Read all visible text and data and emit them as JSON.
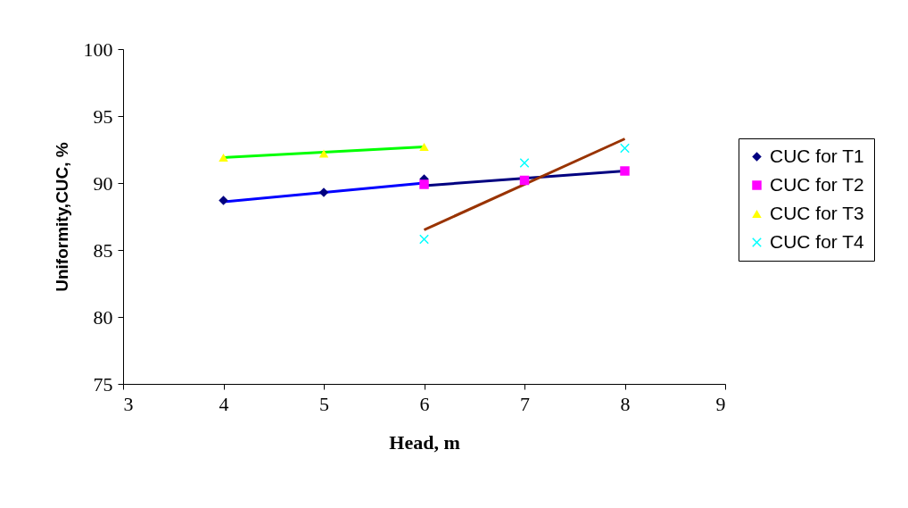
{
  "chart_data": {
    "type": "scatter",
    "xlabel": "Head, m",
    "ylabel": "Uniformity,CUC, %",
    "xlim": [
      3,
      9
    ],
    "xticks": [
      3,
      4,
      5,
      6,
      7,
      8,
      9
    ],
    "ylim": [
      75,
      100
    ],
    "yticks": [
      75,
      80,
      85,
      90,
      95,
      100
    ],
    "grid": false,
    "legend": "right",
    "series": [
      {
        "name": "CUC for T1",
        "marker": "diamond",
        "color": "#000080",
        "x": [
          4,
          5,
          6
        ],
        "values": [
          88.7,
          89.3,
          90.3
        ]
      },
      {
        "name": "CUC for T2",
        "marker": "square",
        "color": "#ff00ff",
        "x": [
          6,
          7,
          8
        ],
        "values": [
          89.9,
          90.2,
          90.9
        ]
      },
      {
        "name": "CUC for T3",
        "marker": "triangle",
        "color": "#ffff00",
        "x": [
          4,
          5,
          6
        ],
        "values": [
          91.9,
          92.2,
          92.7
        ]
      },
      {
        "name": "CUC for T4",
        "marker": "cross",
        "color": "#00ffff",
        "x": [
          6,
          7,
          8
        ],
        "values": [
          85.8,
          91.5,
          92.6
        ]
      },
      {
        "type": "line",
        "color": "#0000ff",
        "x": [
          4,
          6
        ],
        "values": [
          88.6,
          90.0
        ]
      },
      {
        "type": "line",
        "color": "#000080",
        "x": [
          6,
          8
        ],
        "values": [
          89.8,
          90.9
        ]
      },
      {
        "type": "line",
        "color": "#00ff00",
        "x": [
          4,
          6
        ],
        "values": [
          91.9,
          92.7
        ]
      },
      {
        "type": "line",
        "color": "#993300",
        "x": [
          6,
          8
        ],
        "values": [
          86.5,
          93.3
        ]
      }
    ]
  }
}
